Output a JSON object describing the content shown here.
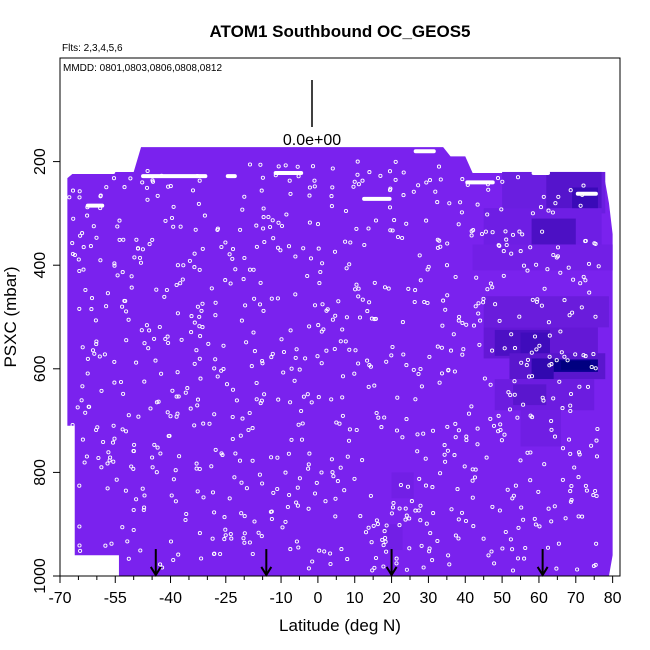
{
  "chart_data": {
    "type": "heatmap",
    "title": "ATOM1 Southbound OC_GEOS5",
    "subtitle": "Flts: 2,3,4,5,6",
    "annotation": "MMDD: 0801,0803,0806,0808,0812",
    "scale_label": "0.0e+00",
    "xlabel": "Latitude (deg N)",
    "ylabel": "PSXC (mbar)",
    "xlim": [
      -70,
      82
    ],
    "ylim": [
      1000,
      0
    ],
    "x_ticks": [
      -70,
      -55,
      -40,
      -25,
      -10,
      0,
      10,
      20,
      30,
      40,
      50,
      60,
      70,
      80
    ],
    "x_ticks_minor": [
      -65,
      -60,
      -50,
      -45,
      -35,
      -30,
      -20,
      -15,
      -5,
      5,
      15,
      25,
      35,
      45,
      55,
      65,
      75
    ],
    "y_ticks": [
      200,
      400,
      600,
      800,
      1000
    ],
    "base_color": "#7a22ee",
    "profile_arrows_lat": [
      -44,
      -14,
      20,
      61
    ],
    "heat_patches": [
      {
        "lat": [
          50,
          78
        ],
        "p": [
          220,
          300
        ],
        "color": "#6a1ee0"
      },
      {
        "lat": [
          62,
          77
        ],
        "p": [
          220,
          290
        ],
        "color": "#5514cc"
      },
      {
        "lat": [
          69,
          76
        ],
        "p": [
          250,
          300
        ],
        "color": "#3a0ab8"
      },
      {
        "lat": [
          45,
          77
        ],
        "p": [
          290,
          360
        ],
        "color": "#6e1ee4"
      },
      {
        "lat": [
          58,
          70
        ],
        "p": [
          310,
          360
        ],
        "color": "#4c10c4"
      },
      {
        "lat": [
          62,
          70
        ],
        "p": [
          390,
          400
        ],
        "color": "#3308b2"
      },
      {
        "lat": [
          42,
          80
        ],
        "p": [
          360,
          410
        ],
        "color": "#721fe6"
      },
      {
        "lat": [
          45,
          79
        ],
        "p": [
          460,
          520
        ],
        "color": "#6a1cdc"
      },
      {
        "lat": [
          45,
          76
        ],
        "p": [
          520,
          580
        ],
        "color": "#6418d6"
      },
      {
        "lat": [
          48,
          63
        ],
        "p": [
          525,
          575
        ],
        "color": "#4c10c4"
      },
      {
        "lat": [
          55,
          63
        ],
        "p": [
          530,
          572
        ],
        "color": "#3f0cbc"
      },
      {
        "lat": [
          52,
          78
        ],
        "p": [
          570,
          620
        ],
        "color": "#5a16ce"
      },
      {
        "lat": [
          58,
          64
        ],
        "p": [
          580,
          620
        ],
        "color": "#3108b0"
      },
      {
        "lat": [
          64,
          76
        ],
        "p": [
          582,
          606
        ],
        "color": "#0a0090"
      },
      {
        "lat": [
          66,
          74
        ],
        "p": [
          585,
          602
        ],
        "color": "#000080"
      },
      {
        "lat": [
          48,
          75
        ],
        "p": [
          620,
          680
        ],
        "color": "#6c1ce0"
      },
      {
        "lat": [
          53,
          62
        ],
        "p": [
          630,
          670
        ],
        "color": "#5a16ce"
      },
      {
        "lat": [
          55,
          66
        ],
        "p": [
          680,
          750
        ],
        "color": "#701ee4"
      },
      {
        "lat": [
          20,
          26
        ],
        "p": [
          800,
          850
        ],
        "color": "#721fe6"
      },
      {
        "lat": [
          18,
          23
        ],
        "p": [
          900,
          950
        ],
        "color": "#721fe6"
      }
    ],
    "top_white_strips": [
      {
        "lat": [
          -67,
          -55
        ],
        "p": 220
      },
      {
        "lat": [
          -48,
          -30
        ],
        "p": 228
      },
      {
        "lat": [
          -25,
          -22
        ],
        "p": 228
      },
      {
        "lat": [
          -12,
          -4
        ],
        "p": 222
      },
      {
        "lat": [
          12,
          20
        ],
        "p": 272
      },
      {
        "lat": [
          26,
          32
        ],
        "p": 180
      },
      {
        "lat": [
          58,
          63
        ],
        "p": 222
      },
      {
        "lat": [
          70,
          76
        ],
        "p": 262
      },
      {
        "lat": [
          -63,
          -58
        ],
        "p": 285
      },
      {
        "lat": [
          40,
          48
        ],
        "p": 240
      }
    ],
    "sample_points_per_profile": 20
  }
}
